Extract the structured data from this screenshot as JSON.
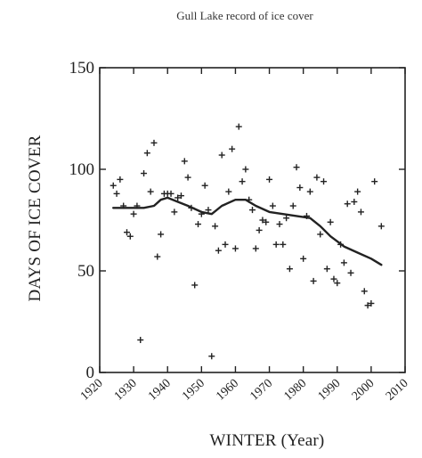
{
  "chart_data": {
    "type": "scatter",
    "title": "Gull Lake record of ice cover",
    "xlabel": "WINTER (Year)",
    "ylabel": "DAYS OF ICE COVER",
    "xlim": [
      1920,
      2010
    ],
    "ylim": [
      0,
      150
    ],
    "xticks": [
      "1920",
      "1930",
      "1940",
      "1950",
      "1960",
      "1970",
      "1980",
      "1990",
      "2000",
      "2010"
    ],
    "yticks": [
      "0",
      "50",
      "100",
      "150"
    ],
    "grid": false,
    "legend": "none",
    "marker_color": "#222222",
    "line_color": "#222222",
    "points": [
      {
        "x": 1924,
        "y": 92
      },
      {
        "x": 1925,
        "y": 88
      },
      {
        "x": 1926,
        "y": 95
      },
      {
        "x": 1927,
        "y": 82
      },
      {
        "x": 1928,
        "y": 69
      },
      {
        "x": 1929,
        "y": 67
      },
      {
        "x": 1930,
        "y": 78
      },
      {
        "x": 1931,
        "y": 82
      },
      {
        "x": 1932,
        "y": 16
      },
      {
        "x": 1933,
        "y": 98
      },
      {
        "x": 1934,
        "y": 108
      },
      {
        "x": 1935,
        "y": 89
      },
      {
        "x": 1936,
        "y": 113
      },
      {
        "x": 1937,
        "y": 57
      },
      {
        "x": 1938,
        "y": 68
      },
      {
        "x": 1939,
        "y": 88
      },
      {
        "x": 1940,
        "y": 88
      },
      {
        "x": 1941,
        "y": 88
      },
      {
        "x": 1942,
        "y": 79
      },
      {
        "x": 1943,
        "y": 86
      },
      {
        "x": 1944,
        "y": 87
      },
      {
        "x": 1945,
        "y": 104
      },
      {
        "x": 1946,
        "y": 96
      },
      {
        "x": 1947,
        "y": 81
      },
      {
        "x": 1948,
        "y": 43
      },
      {
        "x": 1949,
        "y": 73
      },
      {
        "x": 1950,
        "y": 78
      },
      {
        "x": 1951,
        "y": 92
      },
      {
        "x": 1952,
        "y": 80
      },
      {
        "x": 1953,
        "y": 8
      },
      {
        "x": 1954,
        "y": 72
      },
      {
        "x": 1955,
        "y": 60
      },
      {
        "x": 1956,
        "y": 107
      },
      {
        "x": 1957,
        "y": 63
      },
      {
        "x": 1958,
        "y": 89
      },
      {
        "x": 1959,
        "y": 110
      },
      {
        "x": 1960,
        "y": 61
      },
      {
        "x": 1961,
        "y": 121
      },
      {
        "x": 1962,
        "y": 94
      },
      {
        "x": 1963,
        "y": 100
      },
      {
        "x": 1964,
        "y": 85
      },
      {
        "x": 1965,
        "y": 80
      },
      {
        "x": 1966,
        "y": 61
      },
      {
        "x": 1967,
        "y": 70
      },
      {
        "x": 1968,
        "y": 75
      },
      {
        "x": 1969,
        "y": 74
      },
      {
        "x": 1970,
        "y": 95
      },
      {
        "x": 1971,
        "y": 82
      },
      {
        "x": 1972,
        "y": 63
      },
      {
        "x": 1973,
        "y": 73
      },
      {
        "x": 1974,
        "y": 63
      },
      {
        "x": 1975,
        "y": 76
      },
      {
        "x": 1976,
        "y": 51
      },
      {
        "x": 1977,
        "y": 82
      },
      {
        "x": 1978,
        "y": 101
      },
      {
        "x": 1979,
        "y": 91
      },
      {
        "x": 1980,
        "y": 56
      },
      {
        "x": 1981,
        "y": 77
      },
      {
        "x": 1982,
        "y": 89
      },
      {
        "x": 1983,
        "y": 45
      },
      {
        "x": 1984,
        "y": 96
      },
      {
        "x": 1985,
        "y": 68
      },
      {
        "x": 1986,
        "y": 94
      },
      {
        "x": 1987,
        "y": 51
      },
      {
        "x": 1988,
        "y": 74
      },
      {
        "x": 1989,
        "y": 46
      },
      {
        "x": 1990,
        "y": 44
      },
      {
        "x": 1991,
        "y": 63
      },
      {
        "x": 1992,
        "y": 54
      },
      {
        "x": 1993,
        "y": 83
      },
      {
        "x": 1994,
        "y": 49
      },
      {
        "x": 1995,
        "y": 84
      },
      {
        "x": 1996,
        "y": 89
      },
      {
        "x": 1997,
        "y": 79
      },
      {
        "x": 1998,
        "y": 40
      },
      {
        "x": 1999,
        "y": 33
      },
      {
        "x": 2000,
        "y": 34
      },
      {
        "x": 2001,
        "y": 94
      },
      {
        "x": 2003,
        "y": 72
      }
    ],
    "trend": [
      {
        "x": 1924,
        "y": 81
      },
      {
        "x": 1927,
        "y": 81
      },
      {
        "x": 1930,
        "y": 81
      },
      {
        "x": 1933,
        "y": 81
      },
      {
        "x": 1936,
        "y": 82
      },
      {
        "x": 1938,
        "y": 85
      },
      {
        "x": 1940,
        "y": 86
      },
      {
        "x": 1943,
        "y": 84
      },
      {
        "x": 1946,
        "y": 82
      },
      {
        "x": 1950,
        "y": 79
      },
      {
        "x": 1953,
        "y": 78
      },
      {
        "x": 1956,
        "y": 82
      },
      {
        "x": 1960,
        "y": 85
      },
      {
        "x": 1963,
        "y": 85
      },
      {
        "x": 1966,
        "y": 82
      },
      {
        "x": 1970,
        "y": 79
      },
      {
        "x": 1974,
        "y": 78
      },
      {
        "x": 1978,
        "y": 77
      },
      {
        "x": 1982,
        "y": 76
      },
      {
        "x": 1985,
        "y": 72
      },
      {
        "x": 1988,
        "y": 67
      },
      {
        "x": 1992,
        "y": 62
      },
      {
        "x": 1996,
        "y": 59
      },
      {
        "x": 2000,
        "y": 56
      },
      {
        "x": 2003,
        "y": 53
      }
    ]
  }
}
